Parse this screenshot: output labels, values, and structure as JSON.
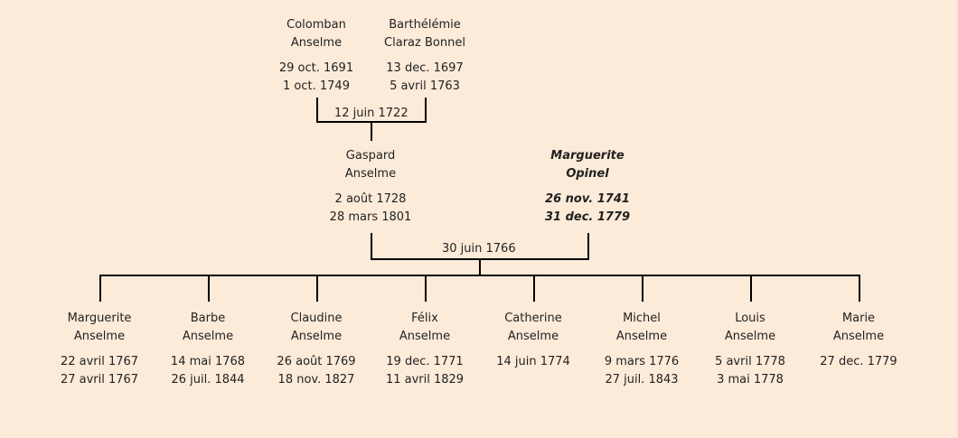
{
  "grandparents": {
    "father": {
      "first": "Colomban",
      "last": "Anselme",
      "birth": "29 oct. 1691",
      "death": "1 oct. 1749"
    },
    "mother": {
      "first": "Barthélémie",
      "last": "Claraz Bonnel",
      "birth": "13 dec. 1697",
      "death": "5 avril 1763"
    },
    "marriage": "12 juin 1722"
  },
  "parents": {
    "father": {
      "first": "Gaspard",
      "last": "Anselme",
      "birth": "2 août 1728",
      "death": "28 mars 1801"
    },
    "mother": {
      "first": "Marguerite",
      "last": "Opinel",
      "birth": "26 nov. 1741",
      "death": "31 dec. 1779"
    },
    "marriage": "30 juin 1766"
  },
  "children": [
    {
      "first": "Marguerite",
      "last": "Anselme",
      "birth": "22 avril 1767",
      "death": "27 avril 1767"
    },
    {
      "first": "Barbe",
      "last": "Anselme",
      "birth": "14 mai 1768",
      "death": "26 juil. 1844"
    },
    {
      "first": "Claudine",
      "last": "Anselme",
      "birth": "26 août 1769",
      "death": "18 nov. 1827"
    },
    {
      "first": "Félix",
      "last": "Anselme",
      "birth": "19 dec. 1771",
      "death": "11 avril 1829"
    },
    {
      "first": "Catherine",
      "last": "Anselme",
      "birth": "14 juin 1774",
      "death": ""
    },
    {
      "first": "Michel",
      "last": "Anselme",
      "birth": "9 mars 1776",
      "death": "27 juil. 1843"
    },
    {
      "first": "Louis",
      "last": "Anselme",
      "birth": "5 avril 1778",
      "death": "3 mai 1778"
    },
    {
      "first": "Marie",
      "last": "Anselme",
      "birth": "27 dec. 1779",
      "death": ""
    }
  ]
}
